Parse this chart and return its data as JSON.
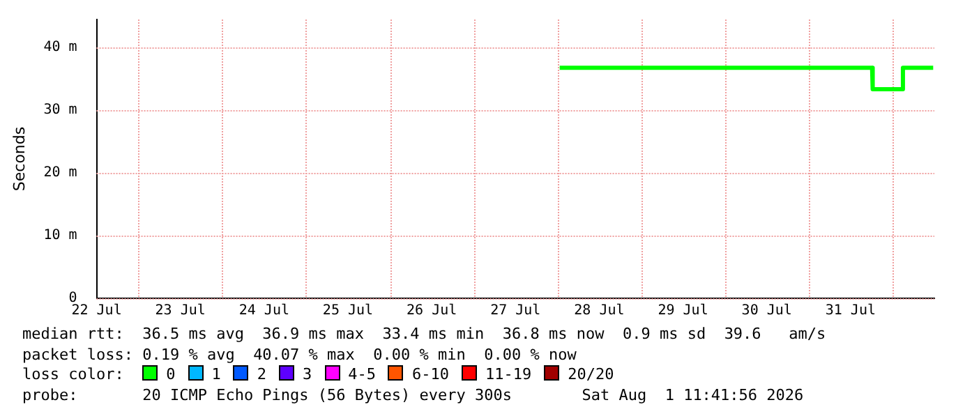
{
  "chart_data": {
    "type": "line",
    "ylabel": "Seconds",
    "legend_title": "loss color:",
    "legend": "bottom",
    "grid": true,
    "marker": "none",
    "line_style": "solid",
    "xlim": [
      "2026-07-22T12:00",
      "2026-08-01T12:00"
    ],
    "xticks": [
      {
        "value": "2026-07-22T12:00",
        "label": "22 Jul"
      },
      {
        "value": "2026-07-23T12:00",
        "label": "23 Jul"
      },
      {
        "value": "2026-07-24T12:00",
        "label": "24 Jul"
      },
      {
        "value": "2026-07-25T12:00",
        "label": "25 Jul"
      },
      {
        "value": "2026-07-26T12:00",
        "label": "26 Jul"
      },
      {
        "value": "2026-07-27T12:00",
        "label": "27 Jul"
      },
      {
        "value": "2026-07-28T12:00",
        "label": "28 Jul"
      },
      {
        "value": "2026-07-29T12:00",
        "label": "29 Jul"
      },
      {
        "value": "2026-07-30T12:00",
        "label": "30 Jul"
      },
      {
        "value": "2026-07-31T12:00",
        "label": "31 Jul"
      }
    ],
    "ylim": [
      0,
      44.4
    ],
    "yticks": [
      0,
      {
        "value": 10,
        "label": "10 m"
      },
      {
        "value": 20,
        "label": "20 m"
      },
      {
        "value": 30,
        "label": "30 m"
      },
      {
        "value": 40,
        "label": "40 m"
      }
    ],
    "x": [
      "2026-07-28T00:40",
      "2026-07-31T18:10",
      "2026-07-31T18:20",
      "2026-08-01T02:50",
      "2026-08-01T03:00",
      "2026-08-01T11:40"
    ],
    "series": [
      {
        "name": "0",
        "color": "#00ff00",
        "values": [
          36.7,
          36.7,
          33.3,
          33.3,
          36.7,
          36.7
        ]
      },
      {
        "name": "1",
        "color": "#00b8ff",
        "values": [
          null,
          null,
          null,
          null,
          null,
          null
        ]
      },
      {
        "name": "2",
        "color": "#0059ff",
        "values": [
          null,
          null,
          null,
          null,
          null,
          null
        ]
      },
      {
        "name": "3",
        "color": "#5e00ff",
        "values": [
          null,
          null,
          null,
          null,
          null,
          null
        ]
      },
      {
        "name": "4-5",
        "color": "#ff00ff",
        "values": [
          null,
          null,
          null,
          null,
          null,
          null
        ]
      },
      {
        "name": "6-10",
        "color": "#ff5500",
        "values": [
          null,
          null,
          null,
          null,
          null,
          null
        ]
      },
      {
        "name": "11-19",
        "color": "#ff0000",
        "values": [
          null,
          null,
          null,
          null,
          null,
          null
        ]
      },
      {
        "name": "20/20",
        "color": "#a10000",
        "values": [
          null,
          null,
          null,
          null,
          null,
          null
        ]
      }
    ],
    "annotations": [
      "median rtt:  36.5 ms avg  36.9 ms max  33.4 ms min  36.8 ms now  0.9 ms sd  39.6   am/s",
      "packet loss: 0.19 % avg  40.07 % max  0.00 % min  0.00 % now",
      "probe:       20 ICMP Echo Pings (56 Bytes) every 300s",
      "Sat Aug  1 11:41:56 2026"
    ]
  }
}
